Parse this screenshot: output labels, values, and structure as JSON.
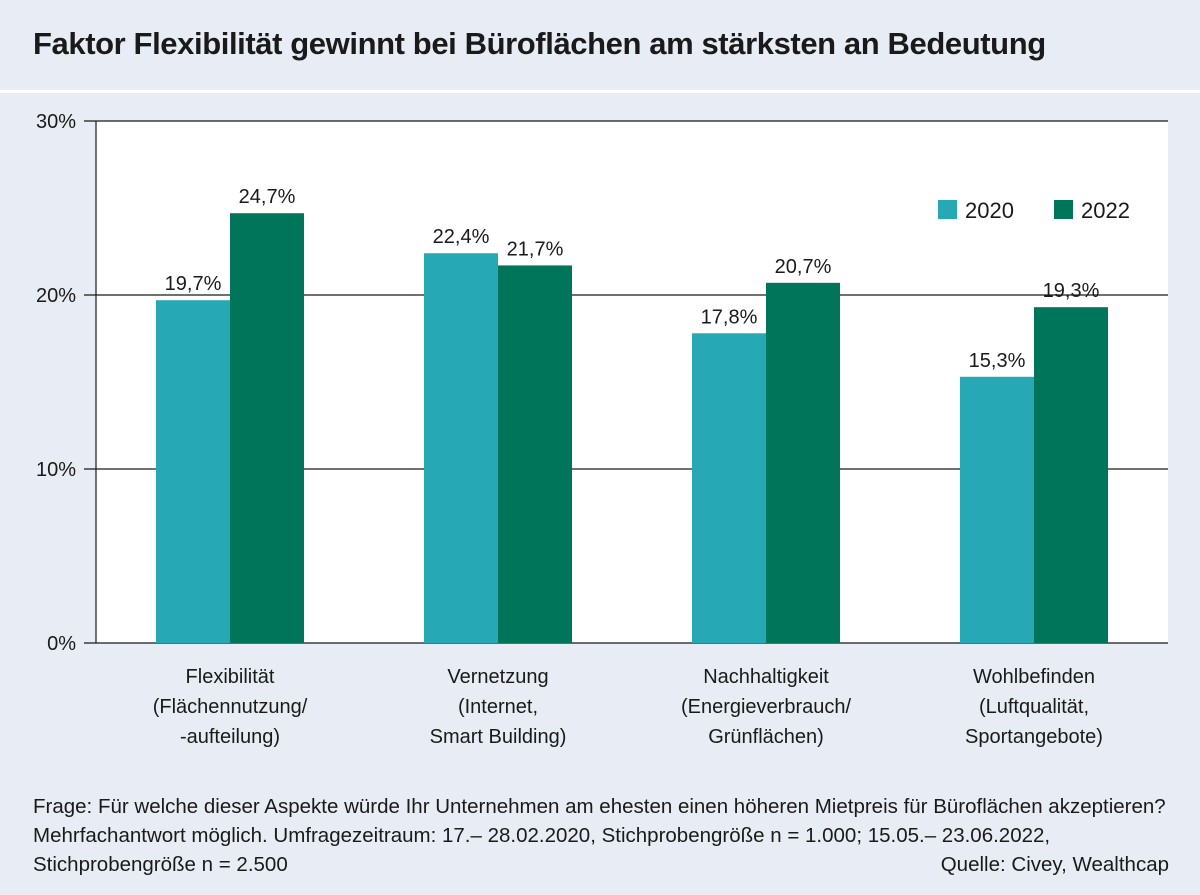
{
  "title": "Faktor Flexibilität gewinnt bei Büroflächen am stärksten an Bedeutung",
  "footnote": {
    "text": "Frage: Für welche dieser Aspekte würde Ihr Unternehmen am ehesten einen höheren Mietpreis für Büroflächen akzeptieren? Mehrfachantwort möglich. Umfragezeitraum: 17.– 28.02.2020, Stichprobengröße n = 1.000; 15.05.– 23.06.2022, Stichprobengröße n = 2.500",
    "source": "Quelle: Civey, Wealthcap"
  },
  "colors": {
    "background": "#e8ecf4",
    "plot_background": "#ffffff",
    "series_2020": "#27a9b5",
    "series_2022": "#00755a"
  },
  "chart_data": {
    "type": "bar",
    "categories": [
      [
        "Flexibilität",
        "(Flächennutzung/",
        "-aufteilung)"
      ],
      [
        "Vernetzung",
        "(Internet,",
        "Smart Building)"
      ],
      [
        "Nachhaltigkeit",
        "(Energieverbrauch/",
        "Grünflächen)"
      ],
      [
        "Wohlbefinden",
        "(Luftqualität,",
        "Sportangebote)"
      ]
    ],
    "series": [
      {
        "name": "2020",
        "values": [
          19.7,
          22.4,
          17.8,
          15.3
        ],
        "labels": [
          "19,7%",
          "22,4%",
          "17,8%",
          "15,3%"
        ],
        "color": "#27a9b5"
      },
      {
        "name": "2022",
        "values": [
          24.7,
          21.7,
          20.7,
          19.3
        ],
        "labels": [
          "24,7%",
          "21,7%",
          "20,7%",
          "19,3%"
        ],
        "color": "#00755a"
      }
    ],
    "yticks": [
      {
        "value": 0,
        "label": "0%"
      },
      {
        "value": 10,
        "label": "10%"
      },
      {
        "value": 20,
        "label": "20%"
      },
      {
        "value": 30,
        "label": "30%"
      }
    ],
    "ylim": [
      0,
      30
    ],
    "grid": true,
    "legend": "top-right"
  }
}
